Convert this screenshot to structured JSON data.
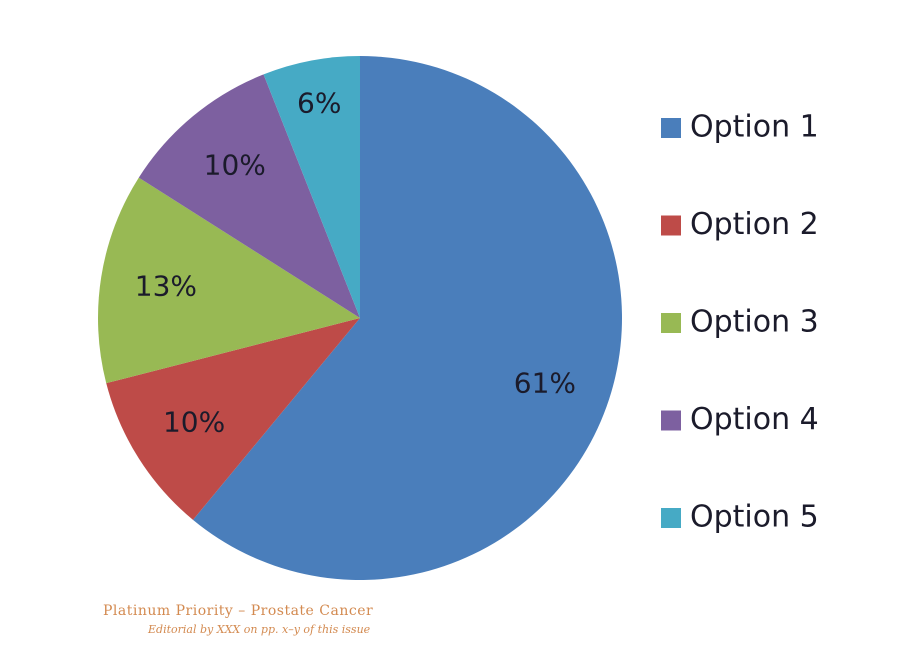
{
  "chart_data": {
    "type": "pie",
    "categories": [
      "Option 1",
      "Option 2",
      "Option 3",
      "Option 4",
      "Option 5"
    ],
    "values": [
      61,
      10,
      13,
      10,
      6
    ],
    "value_labels": [
      "61%",
      "10%",
      "13%",
      "10%",
      "6%"
    ],
    "colors": [
      "#4a7ebb",
      "#be4b48",
      "#98b954",
      "#7d60a0",
      "#46aac5"
    ],
    "legend": "right",
    "annotations": [
      "Platinum Priority – Prostate Cancer",
      "Editorial by XXX on pp. x–y of this issue"
    ]
  }
}
